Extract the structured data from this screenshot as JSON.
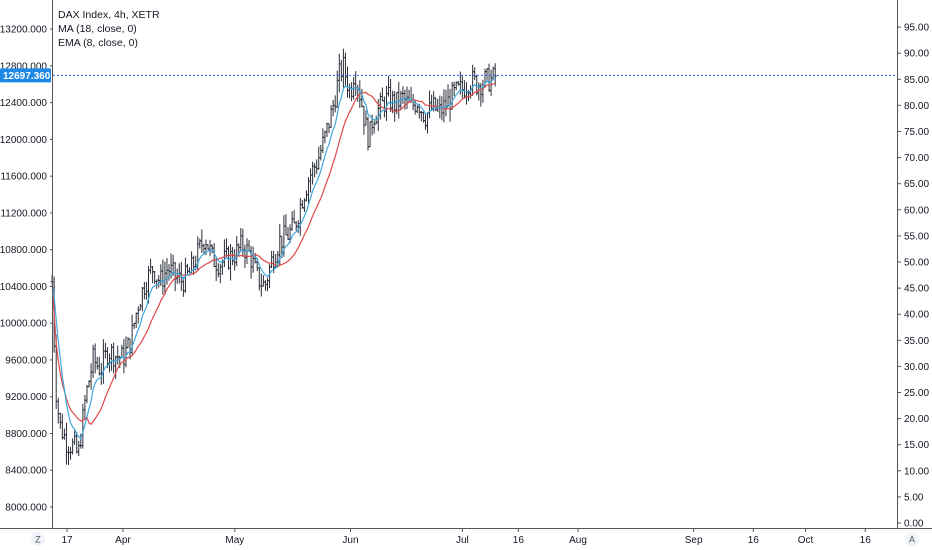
{
  "header": {
    "symbol_line": "DAX Index, 4h, XETR",
    "ma_line": "MA (18, close, 0)",
    "ema_line": "EMA (8, close, 0)"
  },
  "price_label": "12697.360",
  "corner_left": "Z",
  "corner_right": "A",
  "colors": {
    "candle": "#2a2e39",
    "ma": "#e04848",
    "ema": "#3fa7de",
    "price_line": "#2962ff",
    "price_label_bg": "#1e88e5",
    "axis": "#555555"
  },
  "chart_data": {
    "type": "candlestick",
    "left_axis": {
      "ticks": [
        {
          "value": 8000,
          "label": "8000.000"
        },
        {
          "value": 8400,
          "label": "8400.000"
        },
        {
          "value": 8800,
          "label": "8800.000"
        },
        {
          "value": 9200,
          "label": "9200.000"
        },
        {
          "value": 9600,
          "label": "9600.000"
        },
        {
          "value": 10000,
          "label": "10000.000"
        },
        {
          "value": 10400,
          "label": "10400.000"
        },
        {
          "value": 10800,
          "label": "10800.000"
        },
        {
          "value": 11200,
          "label": "11200.000"
        },
        {
          "value": 11600,
          "label": "11600.000"
        },
        {
          "value": 12000,
          "label": "12000.000"
        },
        {
          "value": 12400,
          "label": "12400.000"
        },
        {
          "value": 12800,
          "label": "12800.000"
        },
        {
          "value": 13200,
          "label": "13200.000"
        }
      ]
    },
    "right_axis": {
      "ticks": [
        "0.00",
        "5.00",
        "10.00",
        "15.00",
        "20.00",
        "25.00",
        "30.00",
        "35.00",
        "40.00",
        "45.00",
        "50.00",
        "55.00",
        "60.00",
        "65.00",
        "70.00",
        "75.00",
        "80.00",
        "85.00",
        "90.00",
        "95.00"
      ]
    },
    "x_axis": {
      "ticks": [
        {
          "label": "17",
          "day": 0
        },
        {
          "label": "Apr",
          "day": 15
        },
        {
          "label": "May",
          "day": 45
        },
        {
          "label": "Jun",
          "day": 76
        },
        {
          "label": "Jul",
          "day": 106
        },
        {
          "label": "16",
          "day": 121
        },
        {
          "label": "Aug",
          "day": 137
        },
        {
          "label": "Sep",
          "day": 168
        },
        {
          "label": "16",
          "day": 184
        },
        {
          "label": "Oct",
          "day": 198
        },
        {
          "label": "16",
          "day": 214
        }
      ]
    },
    "current_price": 12697.36,
    "close_path": [
      [
        -4,
        10450
      ],
      [
        -3,
        9300
      ],
      [
        -2,
        8900
      ],
      [
        0,
        8700
      ],
      [
        2,
        8650
      ],
      [
        3,
        8550
      ],
      [
        5,
        9200
      ],
      [
        7,
        9600
      ],
      [
        9,
        9500
      ],
      [
        11,
        9700
      ],
      [
        13,
        9650
      ],
      [
        15,
        9620
      ],
      [
        17,
        9800
      ],
      [
        19,
        10200
      ],
      [
        21,
        10450
      ],
      [
        23,
        10600
      ],
      [
        25,
        10450
      ],
      [
        27,
        10600
      ],
      [
        29,
        10500
      ],
      [
        31,
        10460
      ],
      [
        33,
        10550
      ],
      [
        35,
        10750
      ],
      [
        37,
        10950
      ],
      [
        39,
        10700
      ],
      [
        41,
        10650
      ],
      [
        43,
        10700
      ],
      [
        45,
        10750
      ],
      [
        47,
        10850
      ],
      [
        49,
        10750
      ],
      [
        51,
        10500
      ],
      [
        53,
        10400
      ],
      [
        55,
        10700
      ],
      [
        57,
        10900
      ],
      [
        59,
        10950
      ],
      [
        61,
        11050
      ],
      [
        63,
        11350
      ],
      [
        65,
        11600
      ],
      [
        67,
        11750
      ],
      [
        69,
        12000
      ],
      [
        71,
        12300
      ],
      [
        72,
        12500
      ],
      [
        73,
        12700
      ],
      [
        74,
        12800
      ],
      [
        75,
        12650
      ],
      [
        76,
        12500
      ],
      [
        77,
        12750
      ],
      [
        78,
        12600
      ],
      [
        79,
        12400
      ],
      [
        80,
        12150
      ],
      [
        81,
        12000
      ],
      [
        82,
        12250
      ],
      [
        84,
        12350
      ],
      [
        86,
        12450
      ],
      [
        88,
        12380
      ],
      [
        90,
        12450
      ],
      [
        92,
        12350
      ],
      [
        94,
        12420
      ],
      [
        96,
        12250
      ],
      [
        98,
        12350
      ],
      [
        100,
        12300
      ],
      [
        102,
        12400
      ],
      [
        104,
        12500
      ],
      [
        106,
        12550
      ],
      [
        108,
        12650
      ],
      [
        110,
        12600
      ],
      [
        112,
        12640
      ],
      [
        114,
        12650
      ],
      [
        115,
        12697
      ]
    ]
  }
}
